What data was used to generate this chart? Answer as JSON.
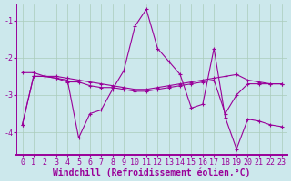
{
  "bg_color": "#cce8ec",
  "line_color": "#990099",
  "grid_color": "#aaccbb",
  "xlabel": "Windchill (Refroidissement éolien,°C)",
  "xlim": [
    -0.5,
    23.5
  ],
  "ylim": [
    -4.6,
    -0.55
  ],
  "yticks": [
    -4,
    -3,
    -2,
    -1
  ],
  "xticks": [
    0,
    1,
    2,
    3,
    4,
    5,
    6,
    7,
    8,
    9,
    10,
    11,
    12,
    13,
    14,
    15,
    16,
    17,
    18,
    19,
    20,
    21,
    22,
    23
  ],
  "s1_y": [
    -3.8,
    -2.5,
    -2.5,
    -2.55,
    -2.6,
    -4.15,
    -3.5,
    -3.4,
    -2.85,
    -2.35,
    -1.15,
    -0.7,
    -1.75,
    -2.1,
    -2.45,
    -3.35,
    -3.25,
    -1.75,
    -3.6,
    -4.45,
    -3.65,
    -3.7,
    -3.8,
    -3.85
  ],
  "s2_y": [
    -2.4,
    -2.4,
    -2.5,
    -2.5,
    -2.55,
    -2.6,
    -2.65,
    -2.7,
    -2.75,
    -2.8,
    -2.85,
    -2.85,
    -2.8,
    -2.75,
    -2.7,
    -2.65,
    -2.6,
    -2.55,
    -2.5,
    -2.45,
    -2.6,
    -2.65,
    -2.7,
    -2.7
  ],
  "s3_y": [
    -3.8,
    -2.5,
    -2.5,
    -2.55,
    -2.65,
    -2.65,
    -2.75,
    -2.8,
    -2.8,
    -2.85,
    -2.9,
    -2.9,
    -2.85,
    -2.8,
    -2.75,
    -2.7,
    -2.65,
    -2.6,
    -3.5,
    -3.0,
    -2.7,
    -2.7,
    -2.7,
    -2.7
  ],
  "tick_fontsize": 6,
  "xlabel_fontsize": 7,
  "figwidth": 3.2,
  "figheight": 2.0,
  "dpi": 100
}
